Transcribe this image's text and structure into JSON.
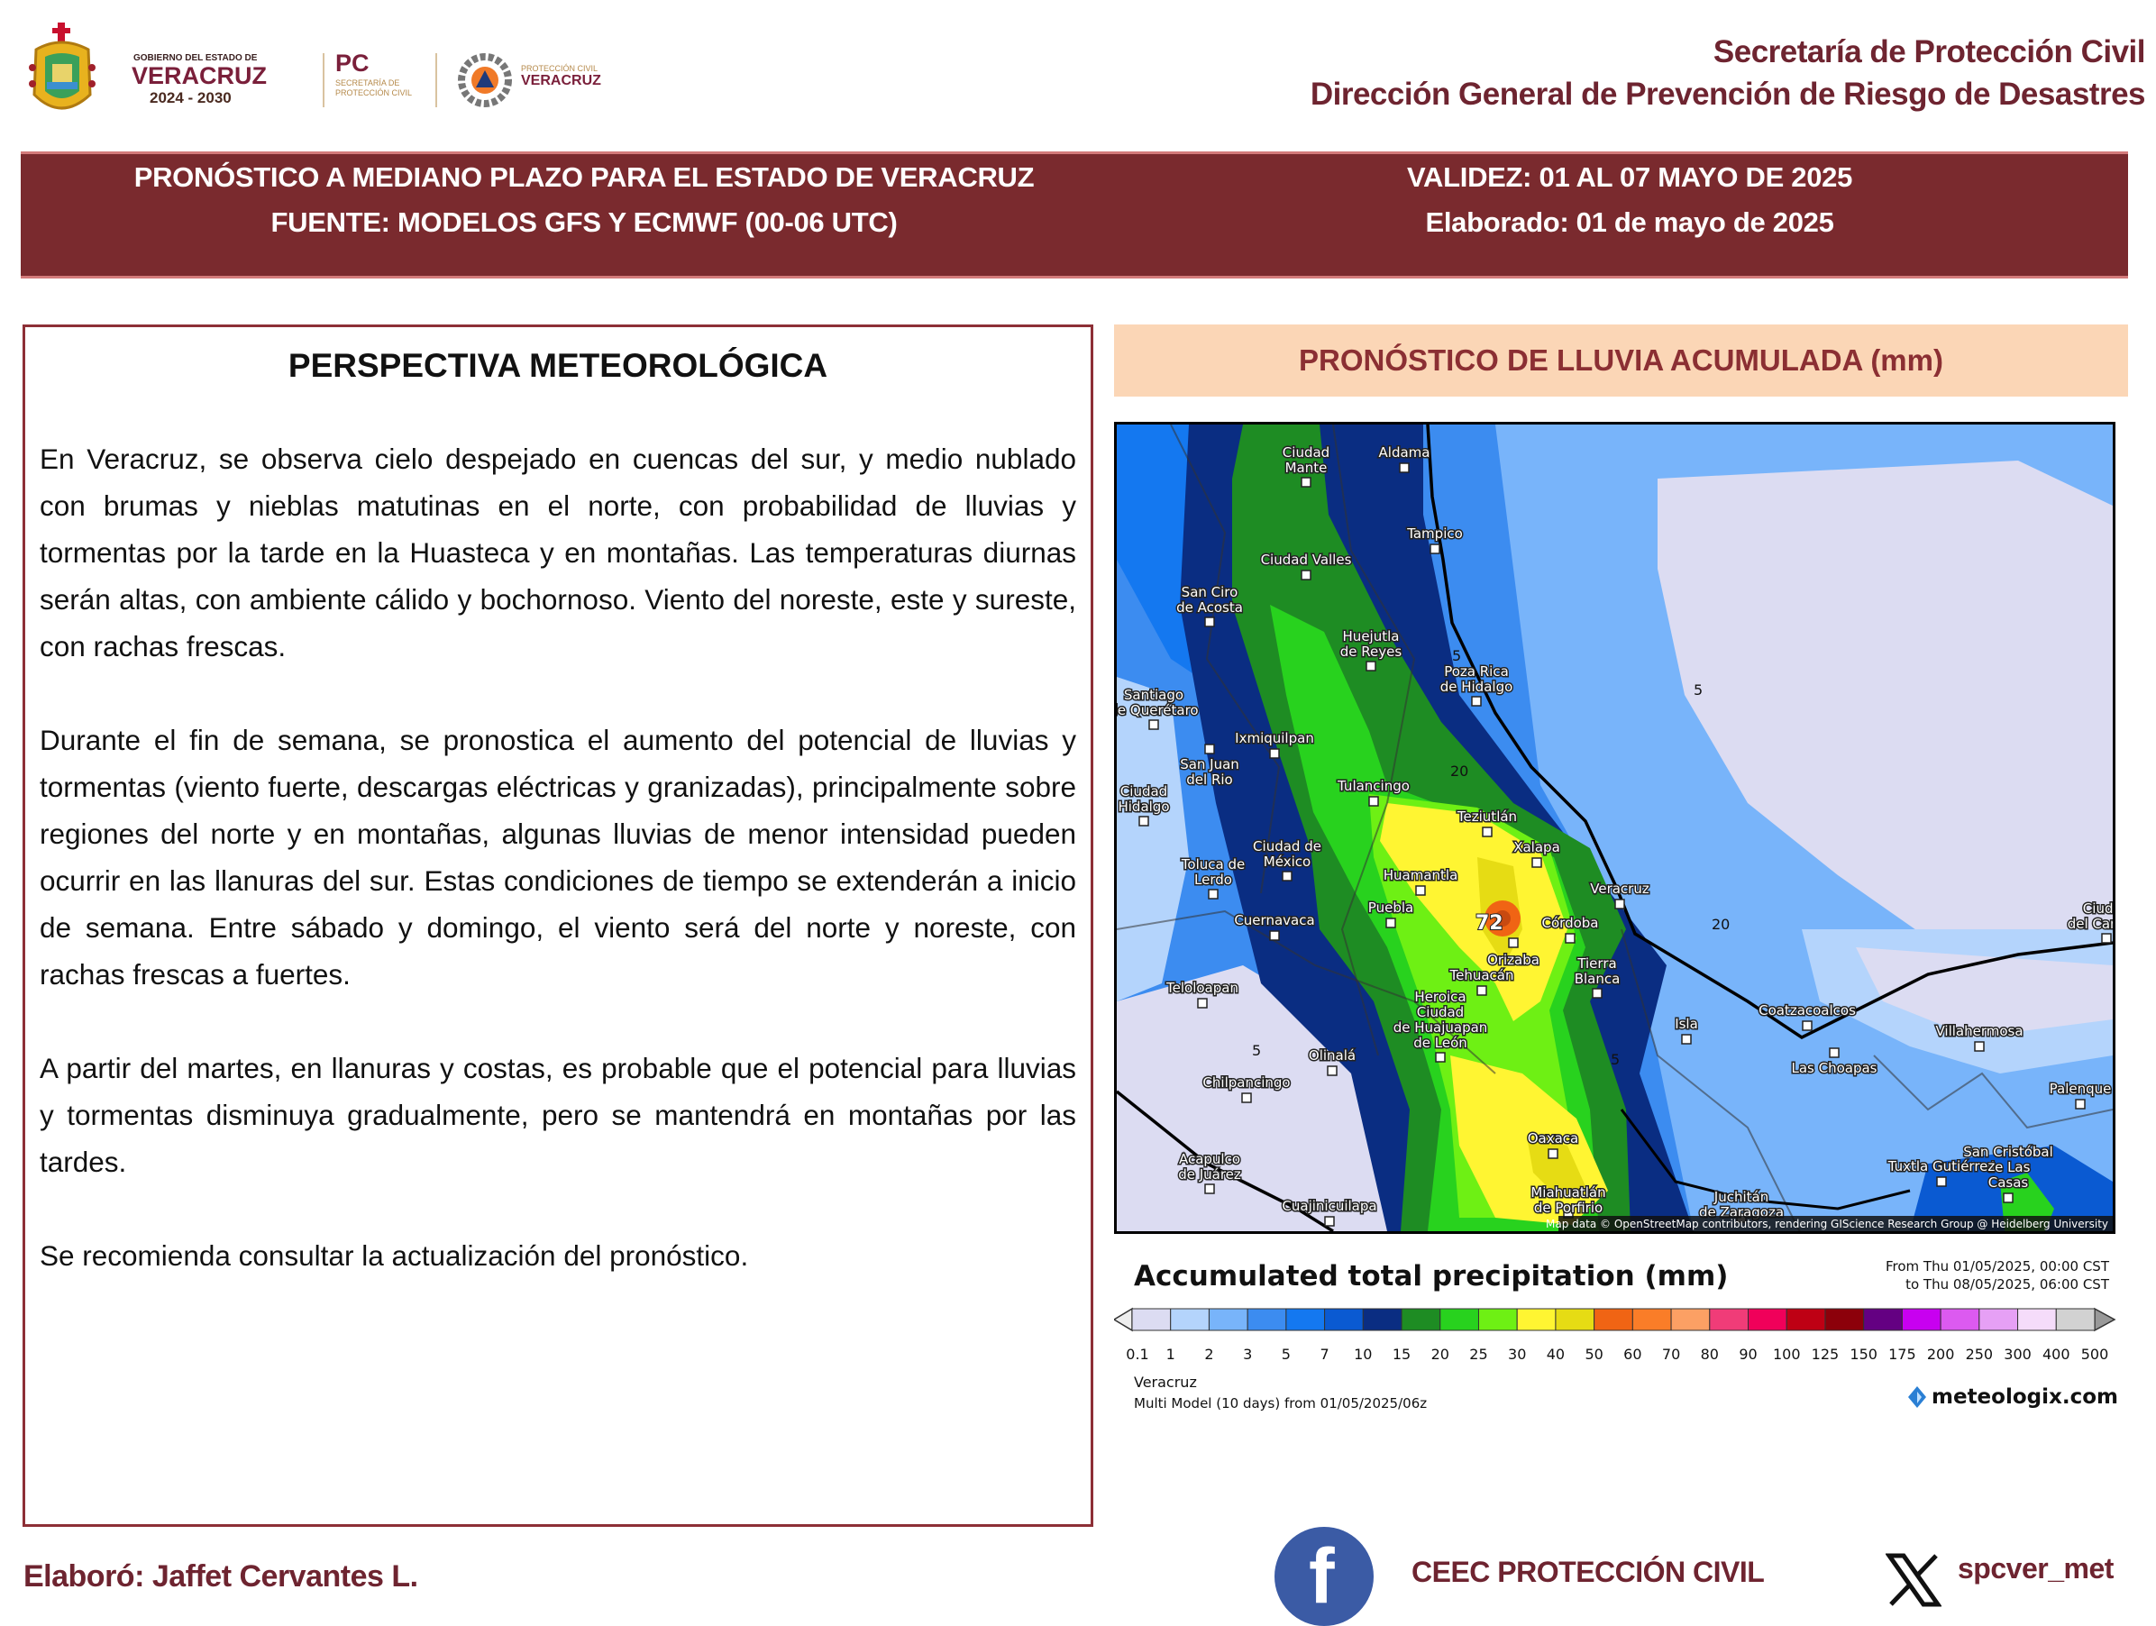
{
  "header": {
    "logos": {
      "gov_small": "GOBIERNO DEL ESTADO DE",
      "gov_big": "VERACRUZ",
      "gov_years": "2024 - 2030",
      "pc_big": "PC",
      "pc_small1": "SECRETARÍA DE",
      "pc_small2": "PROTECCIÓN CIVIL",
      "pcv_small": "PROTECCIÓN CIVIL",
      "pcv_big": "VERACRUZ"
    },
    "org_line1": "Secretaría de Protección Civil",
    "org_line2": "Dirección General de Prevención de Riesgo de Desastres"
  },
  "band": {
    "title": "PRONÓSTICO A MEDIANO PLAZO PARA EL ESTADO DE VERACRUZ",
    "source": "FUENTE: MODELOS GFS Y ECMWF (00-06 UTC)",
    "validity": "VALIDEZ: 01 AL 07 MAYO DE 2025",
    "prepared": "Elaborado: 01 de mayo de 2025"
  },
  "perspective": {
    "title": "PERSPECTIVA METEOROLÓGICA",
    "paragraphs": [
      "En Veracruz, se observa cielo despejado en cuencas del sur, y medio nublado con brumas y nieblas matutinas en el norte, con probabilidad de lluvias y tormentas por la tarde en la Huasteca y en montañas. Las temperaturas diurnas serán altas, con ambiente cálido y bochornoso. Viento del noreste, este y sureste, con rachas frescas.",
      "Durante el fin de semana, se pronostica el aumento del potencial de lluvias y tormentas (viento fuerte, descargas eléctricas y granizadas), principalmente sobre regiones del norte y en montañas, algunas lluvias de menor intensidad pueden ocurrir en las llanuras del sur. Estas condiciones de tiempo se extenderán a inicio de semana. Entre sábado y domingo, el viento será del norte y noreste, con rachas frescas a fuertes.",
      "A partir del martes, en llanuras y costas, es probable que el potencial para lluvias y tormentas disminuya gradualmente, pero se mantendrá en montañas por las tardes.",
      "Se recomienda consultar la actualización del pronóstico."
    ]
  },
  "rain": {
    "title": "PRONÓSTICO DE LLUVIA ACUMULADA (mm)",
    "map": {
      "max_label": "72",
      "contour_labels": [
        "5",
        "5",
        "20",
        "20",
        "5",
        "5"
      ],
      "attribution": "Map data © OpenStreetMap contributors, rendering GIScience Research Group @ Heidelberg University",
      "cities": [
        {
          "name": "Ciudad Mante"
        },
        {
          "name": "Aldama"
        },
        {
          "name": "Tampico"
        },
        {
          "name": "Ciudad Valles"
        },
        {
          "name": "San Ciro de Acosta"
        },
        {
          "name": "Huejutla de Reyes"
        },
        {
          "name": "Poza Rica de Hidalgo"
        },
        {
          "name": "Ixmiquilpan"
        },
        {
          "name": "San Juan del Rio"
        },
        {
          "name": "Tulancingo"
        },
        {
          "name": "Teziutlán"
        },
        {
          "name": "Xalapa"
        },
        {
          "name": "Ciudad de México"
        },
        {
          "name": "Toluca de Lerdo"
        },
        {
          "name": "Huamantla"
        },
        {
          "name": "Veracruz"
        },
        {
          "name": "Puebla"
        },
        {
          "name": "Cuernavaca"
        },
        {
          "name": "Córdoba"
        },
        {
          "name": "Orizaba"
        },
        {
          "name": "Tehuacán"
        },
        {
          "name": "Tierra Blanca"
        },
        {
          "name": "Teloloapan"
        },
        {
          "name": "Heroica Ciudad de Huajuapan de León"
        },
        {
          "name": "Olinalá"
        },
        {
          "name": "Isla"
        },
        {
          "name": "Coatzacoalcos"
        },
        {
          "name": "Las Choapas"
        },
        {
          "name": "Villahermosa"
        },
        {
          "name": "Chilpancingo"
        },
        {
          "name": "Acapulco de Juárez"
        },
        {
          "name": "Oaxaca"
        },
        {
          "name": "San Cristóbal de Las Casas"
        },
        {
          "name": "Tuxtla Gutiérrez"
        },
        {
          "name": "Palenque"
        },
        {
          "name": "Ciudad del Carmen"
        },
        {
          "name": "Miahuatlán de Porfirio"
        },
        {
          "name": "Juchitán de Zaragoza"
        },
        {
          "name": "Cuajinicuilapa"
        },
        {
          "name": "Santiago de Querétaro"
        },
        {
          "name": "Ciudad Hidalgo"
        }
      ]
    },
    "legend": {
      "title": "Accumulated total precipitation (mm)",
      "from": "From Thu 01/05/2025, 00:00 CST",
      "to": "to Thu 08/05/2025, 06:00 CST",
      "ticks": [
        "0.1",
        "1",
        "2",
        "3",
        "5",
        "7",
        "10",
        "15",
        "20",
        "25",
        "30",
        "40",
        "50",
        "60",
        "70",
        "80",
        "90",
        "100",
        "125",
        "150",
        "175",
        "200",
        "250",
        "300",
        "400",
        "500"
      ],
      "colors": [
        "#dcdcf2",
        "#b4d4fc",
        "#78b4fa",
        "#3c8cf0",
        "#1478f0",
        "#0a5ad2",
        "#0a2d82",
        "#1e8c23",
        "#28d21e",
        "#6ef014",
        "#fff532",
        "#e6dc14",
        "#f06414",
        "#fa7d28",
        "#fca064",
        "#f03c78",
        "#f0005a",
        "#be0014",
        "#8c000a",
        "#640082",
        "#c800f0",
        "#dc5af0",
        "#e6a0f5",
        "#f5dcfa",
        "#d2d2d2"
      ],
      "location": "Veracruz",
      "model": "Multi Model (10 days) from  01/05/2025/06z",
      "brand": "meteologix.com"
    }
  },
  "footer": {
    "author": "Elaboró: Jaffet Cervantes L.",
    "facebook": "CEEC PROTECCIÓN CIVIL",
    "x_handle": "spcver_met"
  },
  "colors": {
    "maroon": "#7a2a2e",
    "peach": "#fbd6b6",
    "facebook": "#3b5ba5"
  }
}
